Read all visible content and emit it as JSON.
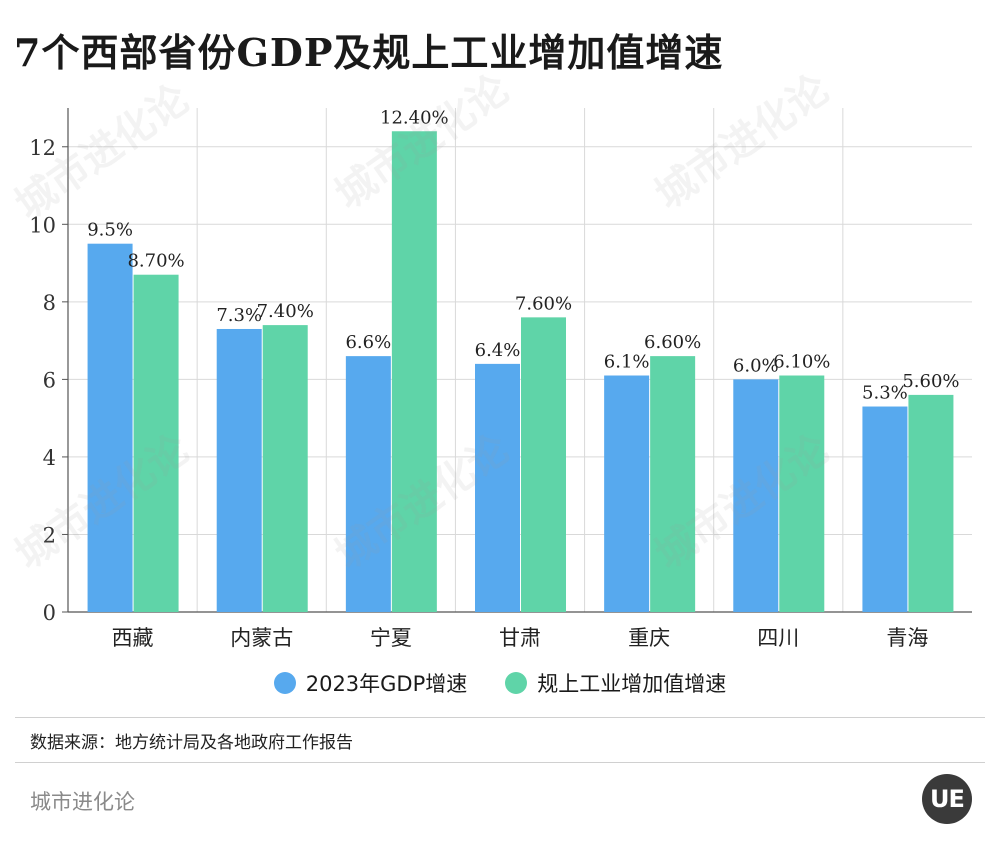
{
  "title": "7个西部省份GDP及规上工业增加值增速",
  "colors": {
    "gdp": "#57a9ee",
    "industry": "#5fd4a8",
    "grid": "#d9d9d9",
    "axis": "#555555"
  },
  "chart_data": {
    "type": "bar",
    "categories": [
      "西藏",
      "内蒙古",
      "宁夏",
      "甘肃",
      "重庆",
      "四川",
      "青海"
    ],
    "series": [
      {
        "name": "2023年GDP增速",
        "values": [
          9.5,
          7.3,
          6.6,
          6.4,
          6.1,
          6.0,
          5.3
        ],
        "labels": [
          "9.5%",
          "7.3%",
          "6.6%",
          "6.4%",
          "6.1%",
          "6.0%",
          "5.3%"
        ]
      },
      {
        "name": "规上工业增加值增速",
        "values": [
          8.7,
          7.4,
          12.4,
          7.6,
          6.6,
          6.1,
          5.6
        ],
        "labels": [
          "8.70%",
          "7.40%",
          "12.40%",
          "7.60%",
          "6.60%",
          "6.10%",
          "5.60%"
        ]
      }
    ],
    "yticks": [
      "0",
      "2",
      "4",
      "6",
      "8",
      "10",
      "12"
    ],
    "ylim": [
      0,
      13
    ],
    "grid": true,
    "legend": "bottom"
  },
  "source": "数据来源：地方统计局及各地政府工作报告",
  "footer_brand": "城市进化论",
  "logo_text": "UE",
  "watermark": "城市进化论"
}
